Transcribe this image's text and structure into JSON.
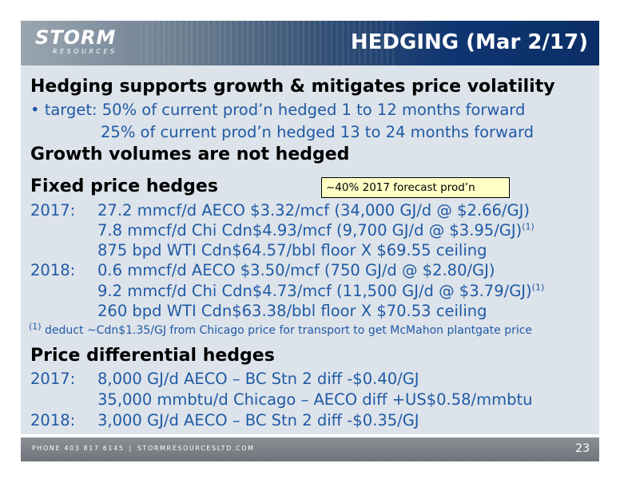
{
  "header": {
    "logo_text": "STORM",
    "logo_subtext": "RESOURCES",
    "title": "HEDGING (Mar 2/17)"
  },
  "sections": {
    "intro_heading": "Hedging supports growth & mitigates price volatility",
    "target_line1": "• target: 50% of current prod’n hedged 1 to 12 months forward",
    "target_line2": "25% of current prod’n hedged 13 to 24 months forward",
    "growth_heading": "Growth volumes are not hedged",
    "fixed_heading": "Fixed price hedges",
    "callout": "~40% 2017 forecast prod’n",
    "fixed_2017_year": "2017:",
    "fixed_2017_line1": "27.2 mmcf/d AECO $3.32/mcf (34,000 GJ/d @ $2.66/GJ)",
    "fixed_2017_line2": "7.8 mmcf/d Chi Cdn$4.93/mcf (9,700 GJ/d @ $3.95/GJ)",
    "fixed_2017_line2_note": "(1)",
    "fixed_2017_line3": "875 bpd WTI Cdn$64.57/bbl floor X $69.55 ceiling",
    "fixed_2018_year": "2018:",
    "fixed_2018_line1": "0.6 mmcf/d AECO $3.50/mcf (750 GJ/d @ $2.80/GJ)",
    "fixed_2018_line2": "9.2 mmcf/d Chi Cdn$4.73/mcf (11,500 GJ/d @ $3.79/GJ)",
    "fixed_2018_line2_note": "(1)",
    "fixed_2018_line3": "260 bpd WTI Cdn$63.38/bbl floor X $70.53 ceiling",
    "footnote_mark": "(1)",
    "footnote_text": "deduct ~Cdn$1.35/GJ from Chicago price for transport to get McMahon plantgate price",
    "diff_heading": "Price differential hedges",
    "diff_2017_year": "2017:",
    "diff_2017_line1": "8,000 GJ/d AECO – BC Stn 2 diff -$0.40/GJ",
    "diff_2017_line2": "35,000 mmbtu/d Chicago – AECO diff +US$0.58/mmbtu",
    "diff_2018_year": "2018:",
    "diff_2018_line1": "3,000 GJ/d AECO – BC Stn 2 diff -$0.35/GJ"
  },
  "footer": {
    "phone": "PHONE 403 817 6145",
    "separator": "|",
    "website": "STORMRESOURCESLTD.COM",
    "page_number": "23"
  },
  "colors": {
    "heading": "#000000",
    "body_text": "#1f5aa6",
    "content_bg": "#dde3ea",
    "header_dark": "#0b2e66",
    "callout_bg": "#ffffc6"
  }
}
